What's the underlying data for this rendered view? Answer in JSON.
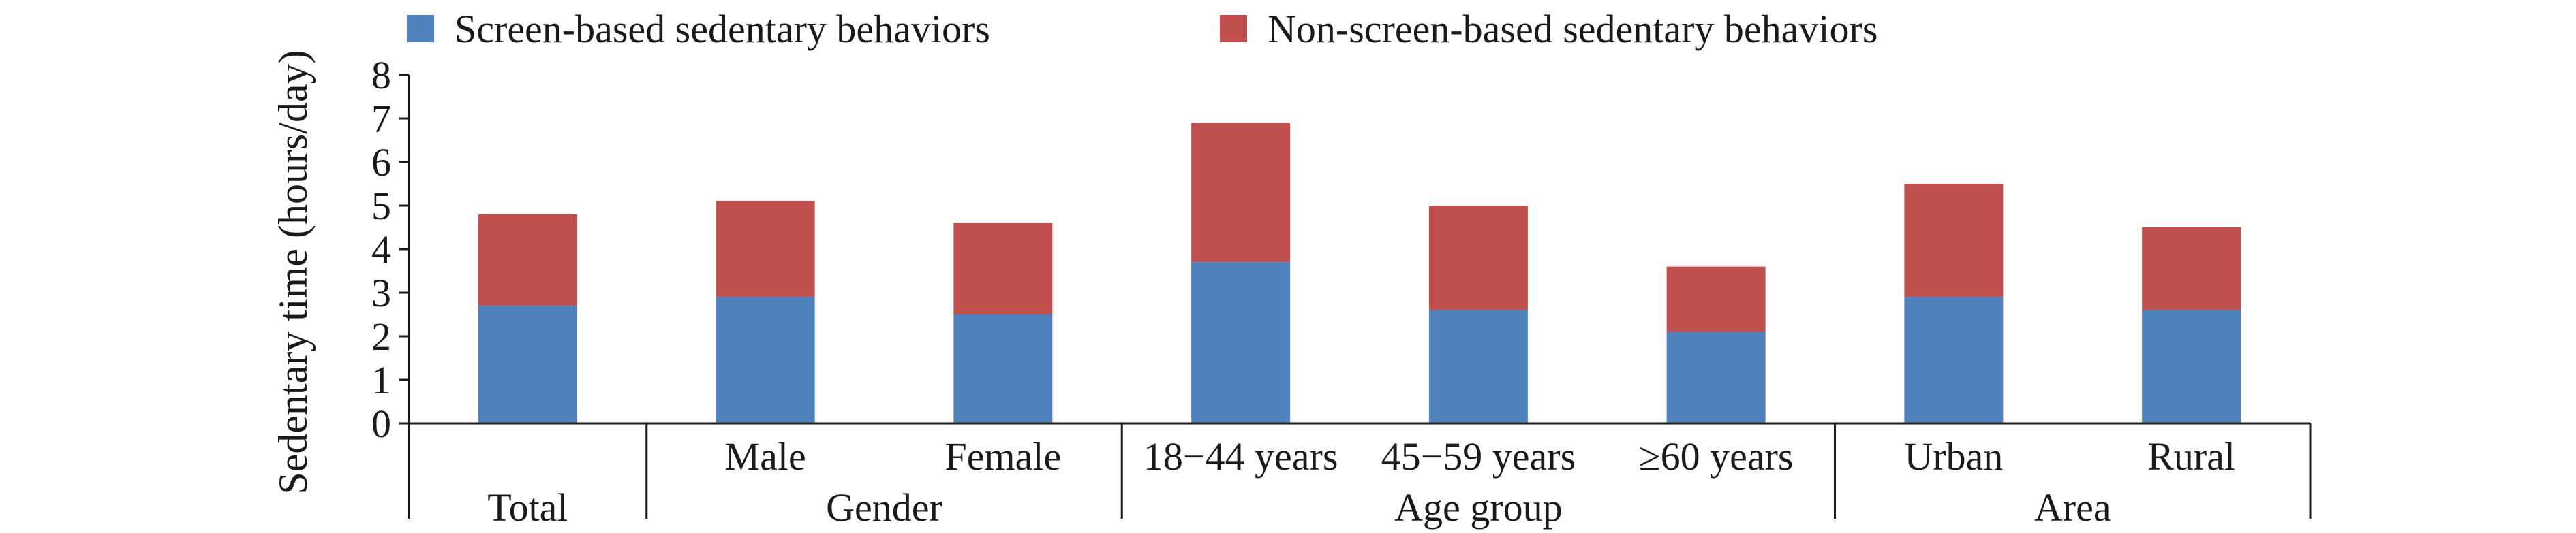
{
  "chart_data": {
    "type": "bar",
    "stacked": true,
    "ylabel": "Sedentary time (hours/day)",
    "ylim": [
      0,
      8
    ],
    "yticks": [
      "0",
      "1",
      "2",
      "3",
      "4",
      "5",
      "6",
      "7",
      "8"
    ],
    "categories": [
      "",
      "Male",
      "Female",
      "18−44 years",
      "45−59 years",
      "≥60 years",
      "Urban",
      "Rural"
    ],
    "groups": [
      {
        "label": "Total",
        "count": 1
      },
      {
        "label": "Gender",
        "count": 2
      },
      {
        "label": "Age group",
        "count": 3
      },
      {
        "label": "Area",
        "count": 2
      }
    ],
    "series": [
      {
        "name": "Screen-based sedentary behaviors",
        "color": "#4f81bd",
        "values": [
          2.7,
          2.9,
          2.5,
          3.7,
          2.6,
          2.1,
          2.9,
          2.6
        ]
      },
      {
        "name": "Non-screen-based sedentary behaviors",
        "color": "#c0504d",
        "values": [
          2.1,
          2.2,
          2.1,
          3.2,
          2.4,
          1.5,
          2.6,
          1.9
        ]
      }
    ],
    "legend": "top",
    "grid": false
  }
}
